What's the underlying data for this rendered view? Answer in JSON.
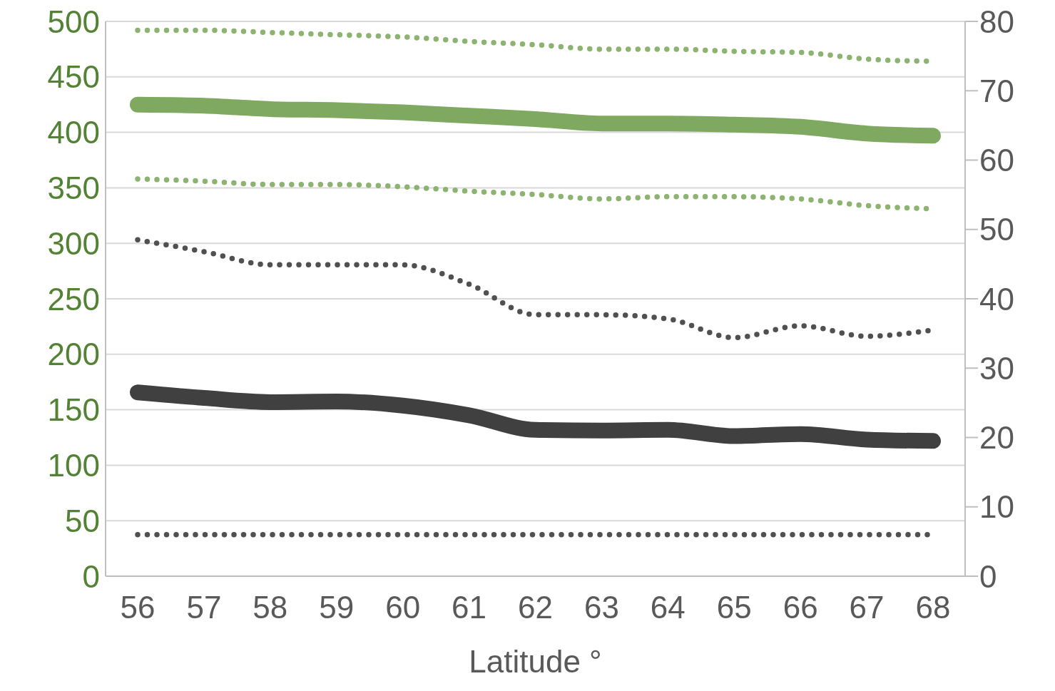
{
  "chart_data": {
    "type": "line",
    "xlabel": "Latitude °",
    "categories": [
      "56",
      "57",
      "58",
      "59",
      "60",
      "61",
      "62",
      "63",
      "64",
      "65",
      "66",
      "67",
      "68"
    ],
    "ylim": [
      0,
      500
    ],
    "yticks": [
      0,
      50,
      100,
      150,
      200,
      250,
      300,
      350,
      400,
      450,
      500
    ],
    "y2lim": [
      0,
      80
    ],
    "y2ticks": [
      0,
      10,
      20,
      30,
      40,
      50,
      60,
      70,
      80
    ],
    "grid": "y",
    "marker": "none",
    "series": [
      {
        "color": "#8cb36f",
        "line_style": "dotted",
        "values": [
          492,
          492,
          490,
          488,
          486,
          482,
          479,
          475,
          475,
          473,
          472,
          466,
          464
        ]
      },
      {
        "color": "#7fa860",
        "line_style": "solid",
        "values": [
          425,
          424,
          421,
          420,
          418,
          415,
          412,
          408,
          408,
          407,
          405,
          399,
          397
        ]
      },
      {
        "color": "#8cb36f",
        "line_style": "dotted",
        "values": [
          358,
          356,
          353,
          353,
          351,
          347,
          344,
          340,
          342,
          342,
          340,
          334,
          331
        ]
      },
      {
        "color": "#505050",
        "line_style": "dotted",
        "axis": "y2",
        "values": [
          48.5,
          46.8,
          44.9,
          44.9,
          44.9,
          42.1,
          37.7,
          37.7,
          37.1,
          34.4,
          36.1,
          34.6,
          35.5
        ]
      },
      {
        "color": "#404040",
        "line_style": "solid",
        "axis": "y2",
        "values": [
          26.5,
          25.7,
          25.1,
          25.2,
          24.6,
          23.2,
          21.1,
          21.0,
          21.1,
          20.2,
          20.5,
          19.7,
          19.5
        ]
      },
      {
        "color": "#505050",
        "line_style": "dotted",
        "axis": "y2",
        "values": [
          6,
          6,
          6,
          6,
          6,
          6,
          6,
          6,
          6,
          6,
          6,
          6,
          6
        ]
      }
    ]
  }
}
